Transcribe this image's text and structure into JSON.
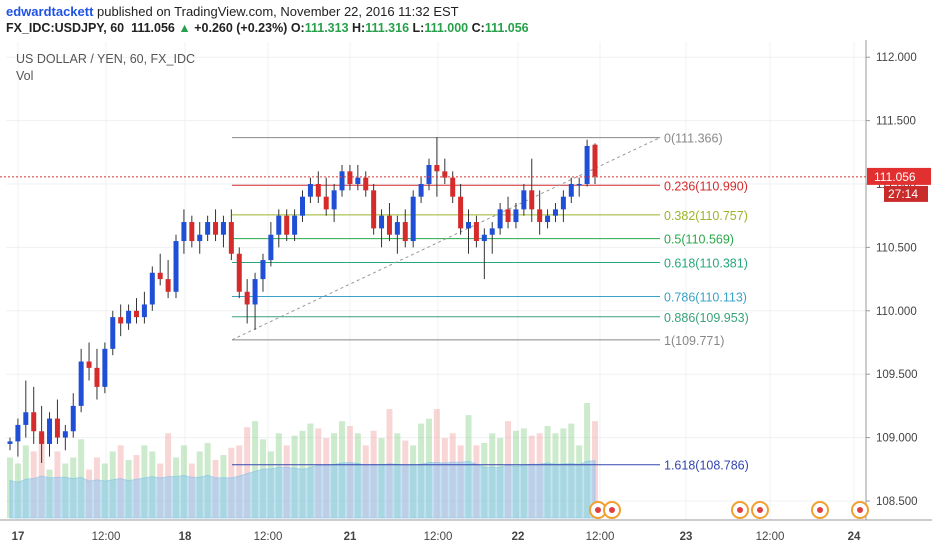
{
  "header": {
    "author": "edwardtackett",
    "published_text": "published on TradingView.com, November 22, 2016 11:32 EST",
    "symbol": "FX_IDC:USDJPY, 60",
    "last": "111.056",
    "change_arrow": "▲",
    "change": "+0.260 (+0.23%)",
    "open_label": "O:",
    "open": "111.313",
    "high_label": "H:",
    "high": "111.316",
    "low_label": "L:",
    "low": "111.000",
    "close_label": "C:",
    "close": "111.056"
  },
  "legend": {
    "series_title": "US DOLLAR / YEN, 60, FX_IDC",
    "vol_label": "Vol"
  },
  "colors": {
    "up": "#1f4fd6",
    "down": "#d62b2b",
    "price_line": "#e23030",
    "grid": "#eef0f3",
    "vol_up": "#8fd18f",
    "vol_down": "#f2a3a3",
    "vol_ma": "#8ec9f0"
  },
  "chart_data": {
    "type": "candlestick",
    "y_axis": {
      "ticks": [
        "112.000",
        "111.500",
        "111.000",
        "110.500",
        "110.000",
        "109.500",
        "109.000",
        "108.500"
      ],
      "range": [
        108.35,
        112.12
      ]
    },
    "x_axis": {
      "ticks": [
        "17",
        "12:00",
        "18",
        "12:00",
        "21",
        "12:00",
        "22",
        "12:00",
        "23",
        "12:00",
        "24"
      ]
    },
    "current_price": "111.056",
    "countdown": "27:14",
    "fibonacci": [
      {
        "label": "0(111.366)",
        "value": 111.366,
        "color": "#888888"
      },
      {
        "label": "0.236(110.990)",
        "value": 110.99,
        "color": "#d62b2b"
      },
      {
        "label": "0.382(110.757)",
        "value": 110.757,
        "color": "#9ab52b"
      },
      {
        "label": "0.5(110.569)",
        "value": 110.569,
        "color": "#2aa84a"
      },
      {
        "label": "0.618(110.381)",
        "value": 110.381,
        "color": "#26a87a"
      },
      {
        "label": "0.786(110.113)",
        "value": 110.113,
        "color": "#3aa2c8"
      },
      {
        "label": "0.886(109.953)",
        "value": 109.953,
        "color": "#3aa27a"
      },
      {
        "label": "1(109.771)",
        "value": 109.771,
        "color": "#888888"
      },
      {
        "label": "1.618(108.786)",
        "value": 108.786,
        "color": "#3446b0"
      }
    ],
    "candles": [
      {
        "o": 108.95,
        "h": 109.0,
        "l": 108.9,
        "c": 108.97
      },
      {
        "o": 108.97,
        "h": 109.15,
        "l": 108.85,
        "c": 109.1
      },
      {
        "o": 109.1,
        "h": 109.45,
        "l": 109.0,
        "c": 109.2
      },
      {
        "o": 109.2,
        "h": 109.4,
        "l": 108.95,
        "c": 109.05
      },
      {
        "o": 109.05,
        "h": 109.25,
        "l": 108.8,
        "c": 108.95
      },
      {
        "o": 108.95,
        "h": 109.2,
        "l": 108.85,
        "c": 109.15
      },
      {
        "o": 109.15,
        "h": 109.3,
        "l": 108.95,
        "c": 109.0
      },
      {
        "o": 109.0,
        "h": 109.1,
        "l": 108.9,
        "c": 109.05
      },
      {
        "o": 109.05,
        "h": 109.35,
        "l": 109.0,
        "c": 109.25
      },
      {
        "o": 109.25,
        "h": 109.7,
        "l": 109.2,
        "c": 109.6
      },
      {
        "o": 109.6,
        "h": 109.75,
        "l": 109.45,
        "c": 109.55
      },
      {
        "o": 109.55,
        "h": 109.7,
        "l": 109.3,
        "c": 109.4
      },
      {
        "o": 109.4,
        "h": 109.75,
        "l": 109.35,
        "c": 109.7
      },
      {
        "o": 109.7,
        "h": 110.0,
        "l": 109.65,
        "c": 109.95
      },
      {
        "o": 109.95,
        "h": 110.05,
        "l": 109.8,
        "c": 109.9
      },
      {
        "o": 109.9,
        "h": 110.05,
        "l": 109.85,
        "c": 110.0
      },
      {
        "o": 110.0,
        "h": 110.1,
        "l": 109.9,
        "c": 109.95
      },
      {
        "o": 109.95,
        "h": 110.15,
        "l": 109.9,
        "c": 110.05
      },
      {
        "o": 110.05,
        "h": 110.35,
        "l": 110.0,
        "c": 110.3
      },
      {
        "o": 110.3,
        "h": 110.45,
        "l": 110.2,
        "c": 110.25
      },
      {
        "o": 110.25,
        "h": 110.4,
        "l": 110.1,
        "c": 110.15
      },
      {
        "o": 110.15,
        "h": 110.6,
        "l": 110.1,
        "c": 110.55
      },
      {
        "o": 110.55,
        "h": 110.8,
        "l": 110.45,
        "c": 110.7
      },
      {
        "o": 110.7,
        "h": 110.75,
        "l": 110.5,
        "c": 110.55
      },
      {
        "o": 110.55,
        "h": 110.7,
        "l": 110.45,
        "c": 110.6
      },
      {
        "o": 110.6,
        "h": 110.75,
        "l": 110.55,
        "c": 110.7
      },
      {
        "o": 110.7,
        "h": 110.8,
        "l": 110.55,
        "c": 110.6
      },
      {
        "o": 110.6,
        "h": 110.75,
        "l": 110.5,
        "c": 110.7
      },
      {
        "o": 110.7,
        "h": 110.8,
        "l": 110.4,
        "c": 110.45
      },
      {
        "o": 110.45,
        "h": 110.5,
        "l": 110.1,
        "c": 110.15
      },
      {
        "o": 110.15,
        "h": 110.25,
        "l": 109.9,
        "c": 110.05
      },
      {
        "o": 110.05,
        "h": 110.3,
        "l": 109.85,
        "c": 110.25
      },
      {
        "o": 110.25,
        "h": 110.45,
        "l": 110.15,
        "c": 110.4
      },
      {
        "o": 110.4,
        "h": 110.7,
        "l": 110.35,
        "c": 110.6
      },
      {
        "o": 110.6,
        "h": 110.8,
        "l": 110.5,
        "c": 110.75
      },
      {
        "o": 110.75,
        "h": 110.8,
        "l": 110.55,
        "c": 110.6
      },
      {
        "o": 110.6,
        "h": 110.8,
        "l": 110.55,
        "c": 110.75
      },
      {
        "o": 110.75,
        "h": 110.95,
        "l": 110.7,
        "c": 110.9
      },
      {
        "o": 110.9,
        "h": 111.05,
        "l": 110.85,
        "c": 111.0
      },
      {
        "o": 111.0,
        "h": 111.1,
        "l": 110.85,
        "c": 110.9
      },
      {
        "o": 110.9,
        "h": 111.05,
        "l": 110.75,
        "c": 110.8
      },
      {
        "o": 110.8,
        "h": 111.0,
        "l": 110.7,
        "c": 110.95
      },
      {
        "o": 110.95,
        "h": 111.15,
        "l": 110.9,
        "c": 111.1
      },
      {
        "o": 111.1,
        "h": 111.15,
        "l": 110.95,
        "c": 111.0
      },
      {
        "o": 111.0,
        "h": 111.15,
        "l": 110.95,
        "c": 111.05
      },
      {
        "o": 111.05,
        "h": 111.1,
        "l": 110.9,
        "c": 110.95
      },
      {
        "o": 110.95,
        "h": 111.0,
        "l": 110.6,
        "c": 110.65
      },
      {
        "o": 110.65,
        "h": 110.8,
        "l": 110.5,
        "c": 110.75
      },
      {
        "o": 110.75,
        "h": 110.85,
        "l": 110.55,
        "c": 110.6
      },
      {
        "o": 110.6,
        "h": 110.75,
        "l": 110.45,
        "c": 110.7
      },
      {
        "o": 110.7,
        "h": 110.8,
        "l": 110.5,
        "c": 110.55
      },
      {
        "o": 110.55,
        "h": 110.95,
        "l": 110.5,
        "c": 110.9
      },
      {
        "o": 110.9,
        "h": 111.05,
        "l": 110.85,
        "c": 111.0
      },
      {
        "o": 111.0,
        "h": 111.2,
        "l": 110.95,
        "c": 111.15
      },
      {
        "o": 111.15,
        "h": 111.37,
        "l": 110.9,
        "c": 111.1
      },
      {
        "o": 111.1,
        "h": 111.2,
        "l": 111.0,
        "c": 111.05
      },
      {
        "o": 111.05,
        "h": 111.1,
        "l": 110.85,
        "c": 110.9
      },
      {
        "o": 110.9,
        "h": 111.0,
        "l": 110.6,
        "c": 110.65
      },
      {
        "o": 110.65,
        "h": 110.8,
        "l": 110.45,
        "c": 110.7
      },
      {
        "o": 110.7,
        "h": 110.75,
        "l": 110.5,
        "c": 110.55
      },
      {
        "o": 110.55,
        "h": 110.65,
        "l": 110.25,
        "c": 110.6
      },
      {
        "o": 110.6,
        "h": 110.7,
        "l": 110.45,
        "c": 110.65
      },
      {
        "o": 110.65,
        "h": 110.85,
        "l": 110.6,
        "c": 110.8
      },
      {
        "o": 110.8,
        "h": 110.9,
        "l": 110.65,
        "c": 110.7
      },
      {
        "o": 110.7,
        "h": 110.85,
        "l": 110.65,
        "c": 110.8
      },
      {
        "o": 110.8,
        "h": 111.0,
        "l": 110.75,
        "c": 110.95
      },
      {
        "o": 110.95,
        "h": 111.2,
        "l": 110.7,
        "c": 110.8
      },
      {
        "o": 110.8,
        "h": 110.95,
        "l": 110.6,
        "c": 110.7
      },
      {
        "o": 110.7,
        "h": 110.8,
        "l": 110.65,
        "c": 110.75
      },
      {
        "o": 110.75,
        "h": 110.85,
        "l": 110.7,
        "c": 110.8
      },
      {
        "o": 110.8,
        "h": 110.95,
        "l": 110.7,
        "c": 110.9
      },
      {
        "o": 110.9,
        "h": 111.05,
        "l": 110.85,
        "c": 111.0
      },
      {
        "o": 111.0,
        "h": 111.05,
        "l": 110.9,
        "c": 111.0
      },
      {
        "o": 111.0,
        "h": 111.35,
        "l": 110.98,
        "c": 111.3
      },
      {
        "o": 111.31,
        "h": 111.32,
        "l": 111.0,
        "c": 111.06
      }
    ],
    "volume": [
      50,
      45,
      60,
      55,
      70,
      40,
      55,
      45,
      50,
      65,
      40,
      50,
      45,
      55,
      60,
      48,
      52,
      60,
      55,
      45,
      70,
      50,
      60,
      45,
      55,
      62,
      48,
      52,
      58,
      60,
      75,
      80,
      65,
      55,
      70,
      60,
      68,
      72,
      78,
      74,
      66,
      70,
      80,
      76,
      70,
      60,
      72,
      66,
      90,
      70,
      64,
      60,
      78,
      82,
      90,
      66,
      70,
      60,
      85,
      60,
      62,
      70,
      66,
      80,
      72,
      74,
      68,
      70,
      76,
      70,
      74,
      78,
      60,
      95,
      80
    ]
  }
}
